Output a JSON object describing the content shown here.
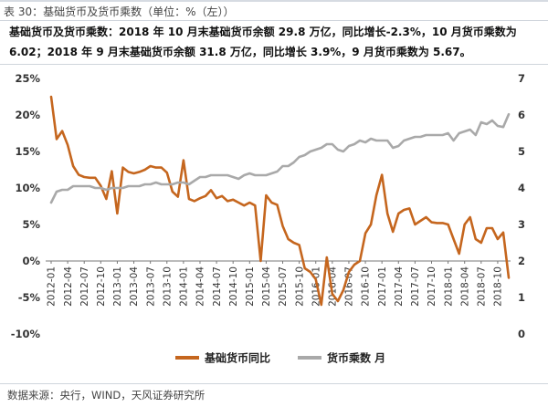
{
  "page": {
    "title": "表 30：基础货币及货币乘数（单位：%（左））",
    "summary": "基础货币及货币乘数：2018 年 10 月末基础货币余额 29.8 万亿，同比增长-2.3%，10 月货币乘数为 6.02；2018 年 9 月末基础货币余额 31.8 万亿，同比增长 3.9%，9 月货币乘数为 5.67。",
    "source": "数据来源：央行，WIND，天风证券研究所"
  },
  "chart_data": {
    "type": "line",
    "title": "",
    "xlabel": "",
    "ylabel": "",
    "x_start": "2012-01",
    "x_end": "2018-10",
    "x_tick_labels": [
      "2012-01",
      "2012-04",
      "2012-07",
      "2012-10",
      "2013-01",
      "2013-04",
      "2013-07",
      "2013-10",
      "2014-01",
      "2014-04",
      "2014-07",
      "2014-10",
      "2015-01",
      "2015-04",
      "2015-07",
      "2015-10",
      "2016-01",
      "2016-04",
      "2016-07",
      "2016-10",
      "2017-01",
      "2017-04",
      "2017-07",
      "2017-10",
      "2018-01",
      "2018-04",
      "2018-07",
      "2018-10"
    ],
    "y_left": {
      "min": -10,
      "max": 25,
      "step": 5,
      "tick_labels": [
        "-10%",
        "-5%",
        "0%",
        "5%",
        "10%",
        "15%",
        "20%",
        "25%"
      ]
    },
    "y_right": {
      "min": 0,
      "max": 7,
      "step": 1,
      "tick_labels": [
        "0",
        "1",
        "2",
        "3",
        "4",
        "5",
        "6",
        "7"
      ]
    },
    "grid": false,
    "legend_position": "bottom",
    "series": [
      {
        "name": "基础货币同比",
        "axis": "left",
        "color": "#c5661e",
        "values": [
          22.5,
          16.7,
          17.8,
          15.9,
          13.0,
          11.8,
          11.5,
          11.4,
          11.4,
          10.3,
          8.5,
          12.3,
          6.5,
          12.8,
          12.2,
          12.0,
          12.2,
          12.5,
          13.0,
          12.8,
          12.8,
          12.1,
          9.5,
          8.8,
          13.8,
          8.5,
          8.2,
          8.6,
          8.9,
          9.7,
          8.6,
          8.9,
          8.2,
          8.4,
          8.0,
          7.6,
          8.0,
          7.6,
          0.0,
          9.0,
          8.0,
          7.7,
          4.8,
          3.0,
          2.5,
          2.2,
          -1.0,
          -1.5,
          -2.5,
          -6.0,
          0.5,
          -4.5,
          -5.5,
          -4.0,
          -1.5,
          -0.5,
          0.0,
          3.8,
          5.0,
          9.0,
          11.8,
          6.5,
          4.0,
          6.5,
          7.0,
          7.2,
          5.0,
          5.5,
          6.0,
          5.3,
          5.2,
          5.2,
          5.0,
          3.0,
          1.0,
          5.0,
          6.0,
          3.0,
          2.5,
          4.5,
          4.5,
          3.0,
          3.9,
          -2.3
        ]
      },
      {
        "name": "货币乘数 月",
        "axis": "right",
        "color": "#a9a9a9",
        "values": [
          3.6,
          3.9,
          3.95,
          3.95,
          4.05,
          4.05,
          4.05,
          4.05,
          4.0,
          4.0,
          3.95,
          4.0,
          4.0,
          4.0,
          4.05,
          4.05,
          4.05,
          4.1,
          4.1,
          4.15,
          4.1,
          4.1,
          4.1,
          4.15,
          4.15,
          4.1,
          4.2,
          4.3,
          4.3,
          4.35,
          4.35,
          4.35,
          4.35,
          4.3,
          4.25,
          4.35,
          4.4,
          4.35,
          4.35,
          4.35,
          4.4,
          4.45,
          4.6,
          4.6,
          4.7,
          4.85,
          4.9,
          5.0,
          5.05,
          5.1,
          5.2,
          5.2,
          5.05,
          5.0,
          5.15,
          5.2,
          5.3,
          5.25,
          5.35,
          5.3,
          5.3,
          5.3,
          5.1,
          5.15,
          5.3,
          5.35,
          5.4,
          5.4,
          5.45,
          5.45,
          5.45,
          5.45,
          5.5,
          5.3,
          5.5,
          5.55,
          5.6,
          5.45,
          5.8,
          5.75,
          5.85,
          5.7,
          5.67,
          6.02
        ]
      }
    ]
  }
}
